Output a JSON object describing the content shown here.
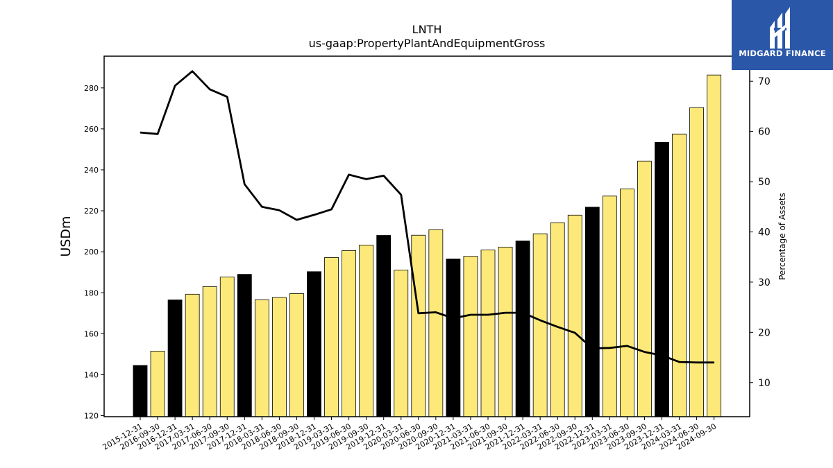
{
  "brand": {
    "name": "MIDGARD FINANCE",
    "color": "#2a57a8"
  },
  "colors": {
    "bar_regular": "#fce97a",
    "bar_year_end": "#000000",
    "line": "#000000"
  },
  "chart_data": {
    "type": "bar",
    "title": "LNTH",
    "subtitle": "us-gaap:PropertyPlantAndEquipmentGross",
    "ylabel": "USDm",
    "y2label": "Percentage of Assets",
    "ylim": [
      119.5,
      295.5
    ],
    "y2lim": [
      3.2,
      75.0
    ],
    "yticks": [
      120,
      140,
      160,
      180,
      200,
      220,
      240,
      260,
      280
    ],
    "y2ticks": [
      10,
      20,
      30,
      40,
      50,
      60,
      70
    ],
    "grid": false,
    "categories": [
      "2015-12-31",
      "2016-09-30",
      "2016-12-31",
      "2017-03-31",
      "2017-06-30",
      "2017-09-30",
      "2017-12-31",
      "2018-03-31",
      "2018-06-30",
      "2018-09-30",
      "2018-12-31",
      "2019-03-31",
      "2019-06-30",
      "2019-09-30",
      "2019-12-31",
      "2020-03-31",
      "2020-06-30",
      "2020-09-30",
      "2020-12-31",
      "2021-03-31",
      "2021-06-30",
      "2021-09-30",
      "2021-12-31",
      "2022-03-31",
      "2022-06-30",
      "2022-09-30",
      "2022-12-31",
      "2023-03-31",
      "2023-06-30",
      "2023-09-30",
      "2023-12-31",
      "2024-03-31",
      "2024-06-30",
      "2024-09-30"
    ],
    "series": [
      {
        "type": "bar",
        "axis": "left",
        "values": [
          144.5,
          151.5,
          176.5,
          179.3,
          183.0,
          187.7,
          189.0,
          176.6,
          177.7,
          179.6,
          190.3,
          197.2,
          200.6,
          203.3,
          208.0,
          191.1,
          208.1,
          210.8,
          196.5,
          197.8,
          200.9,
          202.3,
          205.3,
          208.8,
          214.2,
          217.9,
          221.8,
          227.2,
          230.7,
          244.3,
          253.4,
          257.5,
          270.4,
          286.3
        ],
        "year_end": [
          true,
          false,
          true,
          false,
          false,
          false,
          true,
          false,
          false,
          false,
          true,
          false,
          false,
          false,
          true,
          false,
          false,
          false,
          true,
          false,
          false,
          false,
          true,
          false,
          false,
          false,
          true,
          false,
          false,
          false,
          true,
          false,
          false,
          false
        ]
      },
      {
        "type": "line",
        "axis": "right",
        "values": [
          59.8,
          59.5,
          69.1,
          72.0,
          68.4,
          66.9,
          49.5,
          45.0,
          44.3,
          42.4,
          43.4,
          44.5,
          51.4,
          50.5,
          51.2,
          47.4,
          23.8,
          24.0,
          22.8,
          23.5,
          23.5,
          23.9,
          23.9,
          22.4,
          21.1,
          19.9,
          16.8,
          16.9,
          17.3,
          16.1,
          15.4,
          14.1,
          14.0,
          14.0
        ]
      }
    ]
  }
}
